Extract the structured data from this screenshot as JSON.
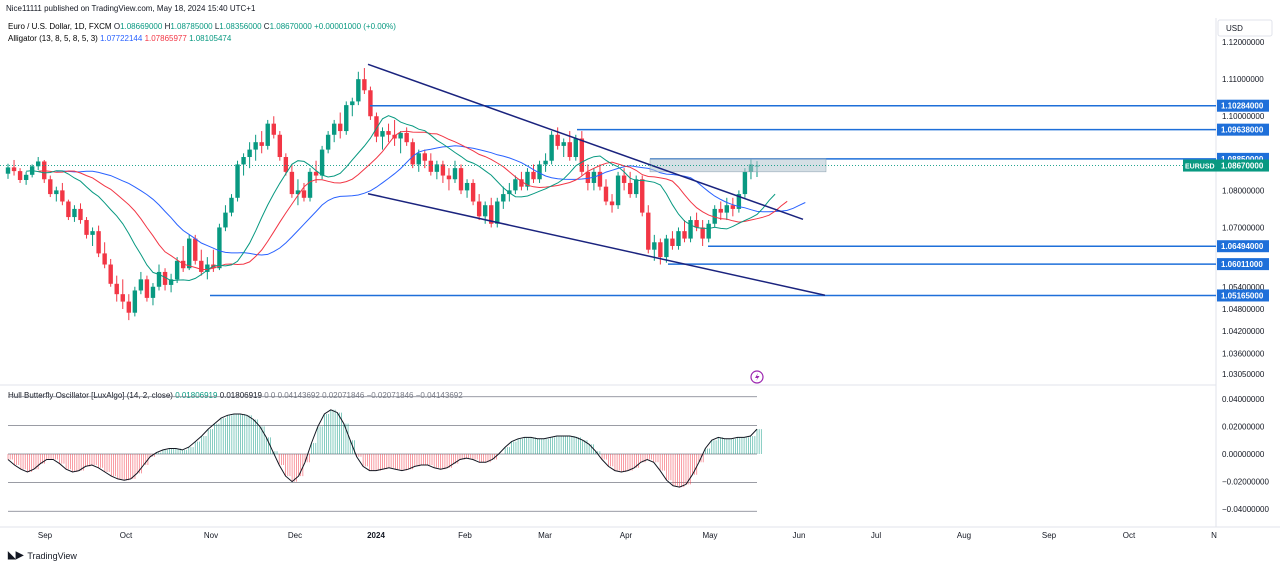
{
  "header": {
    "published": "Nice11111 published on TradingView.com, May 18, 2024 15:40 UTC+1"
  },
  "legend": {
    "symbol": "Euro / U.S. Dollar, 1D, FXCM",
    "ohlc_o_label": "O",
    "ohlc_o": "1.08669000",
    "ohlc_h_label": "H",
    "ohlc_h": "1.08785000",
    "ohlc_l_label": "L",
    "ohlc_l": "1.08356000",
    "ohlc_c_label": "C",
    "ohlc_c": "1.08670000",
    "change": "+0.00001000 (+0.00%)",
    "alligator_label": "Alligator (13, 8, 5, 8, 5, 3)",
    "alligator_jaw": "1.07722144",
    "alligator_teeth": "1.07865977",
    "alligator_lips": "1.08105474"
  },
  "hull": {
    "label": "Hull Butterfly Oscillator [LuxAlgo] (14, 2, close)",
    "v1": "0.01806919",
    "v2": "0.01806919",
    "v3": "0",
    "v4": "0",
    "v5": "0.04143692",
    "v6": "0.02071846",
    "v7": "−0.02071846",
    "v8": "−0.04143692"
  },
  "price_axis": {
    "currency": "USD",
    "ticks": [
      "1.12000000",
      "1.11000000",
      "1.10000000",
      "1.08000000",
      "1.07000000",
      "1.05400000",
      "1.04800000",
      "1.04200000",
      "1.03600000",
      "1.03050000"
    ],
    "levels": [
      "1.10284000",
      "1.09638000",
      "1.08850000",
      "1.06494000",
      "1.06011000",
      "1.05165000"
    ],
    "current_symbol": "EURUSD",
    "current_price": "1.08670000"
  },
  "osc_axis": {
    "ticks": [
      "0.04000000",
      "0.02000000",
      "0.00000000",
      "−0.02000000",
      "−0.04000000"
    ]
  },
  "time_axis": {
    "labels": [
      "Sep",
      "Oct",
      "Nov",
      "Dec",
      "2024",
      "Feb",
      "Mar",
      "Apr",
      "May",
      "Jun",
      "Jul",
      "Aug",
      "Sep",
      "Oct",
      "N"
    ]
  },
  "footer": {
    "brand": "TradingView"
  },
  "colors": {
    "up": "#089981",
    "down": "#f23645",
    "jaw": "#2962ff",
    "teeth": "#f23645",
    "lips": "#089981",
    "level": "#1e6fd9",
    "trend": "#1a237e"
  },
  "chart_data": {
    "type": "candlestick",
    "title": "Euro / U.S. Dollar, 1D, FXCM",
    "levels": [
      1.10284,
      1.09638,
      1.0885,
      1.06494,
      1.06011,
      1.05165
    ],
    "ylim": [
      1.0275,
      1.1265
    ],
    "candles_ohlc": [
      [
        1.0845,
        1.0872,
        1.0831,
        1.0862
      ],
      [
        1.0862,
        1.0882,
        1.084,
        1.0852
      ],
      [
        1.0852,
        1.086,
        1.082,
        1.0828
      ],
      [
        1.0828,
        1.085,
        1.0815,
        1.0842
      ],
      [
        1.0842,
        1.087,
        1.0835,
        1.0865
      ],
      [
        1.0865,
        1.089,
        1.0855,
        1.0878
      ],
      [
        1.0878,
        1.0882,
        1.082,
        1.083
      ],
      [
        1.083,
        1.084,
        1.0782,
        1.079
      ],
      [
        1.079,
        1.081,
        1.077,
        1.08
      ],
      [
        1.08,
        1.082,
        1.076,
        1.077
      ],
      [
        1.077,
        1.0775,
        1.072,
        1.0728
      ],
      [
        1.0728,
        1.076,
        1.0715,
        1.075
      ],
      [
        1.075,
        1.0765,
        1.071,
        1.072
      ],
      [
        1.072,
        1.0728,
        1.067,
        1.068
      ],
      [
        1.068,
        1.07,
        1.065,
        1.069
      ],
      [
        1.069,
        1.0705,
        1.062,
        1.063
      ],
      [
        1.063,
        1.066,
        1.059,
        1.06
      ],
      [
        1.06,
        1.0615,
        1.054,
        1.0548
      ],
      [
        1.0548,
        1.057,
        1.05,
        1.052
      ],
      [
        1.052,
        1.056,
        1.048,
        1.05
      ],
      [
        1.05,
        1.052,
        1.045,
        1.047
      ],
      [
        1.047,
        1.054,
        1.046,
        1.053
      ],
      [
        1.053,
        1.058,
        1.052,
        1.056
      ],
      [
        1.056,
        1.057,
        1.05,
        1.051
      ],
      [
        1.051,
        1.055,
        1.049,
        1.054
      ],
      [
        1.054,
        1.06,
        1.053,
        1.058
      ],
      [
        1.058,
        1.059,
        1.053,
        1.0545
      ],
      [
        1.0545,
        1.0575,
        1.0525,
        1.056
      ],
      [
        1.056,
        1.062,
        1.055,
        1.061
      ],
      [
        1.061,
        1.065,
        1.058,
        1.059
      ],
      [
        1.059,
        1.068,
        1.0585,
        1.067
      ],
      [
        1.067,
        1.068,
        1.06,
        1.061
      ],
      [
        1.061,
        1.064,
        1.057,
        1.058
      ],
      [
        1.058,
        1.062,
        1.056,
        1.06
      ],
      [
        1.06,
        1.064,
        1.058,
        1.059
      ],
      [
        1.059,
        1.071,
        1.0585,
        1.07
      ],
      [
        1.07,
        1.076,
        1.069,
        1.074
      ],
      [
        1.074,
        1.079,
        1.073,
        1.078
      ],
      [
        1.078,
        1.088,
        1.077,
        1.087
      ],
      [
        1.087,
        1.09,
        1.084,
        1.089
      ],
      [
        1.089,
        1.093,
        1.086,
        1.091
      ],
      [
        1.091,
        1.095,
        1.088,
        1.093
      ],
      [
        1.093,
        1.096,
        1.09,
        1.092
      ],
      [
        1.092,
        1.099,
        1.091,
        1.098
      ],
      [
        1.098,
        1.1,
        1.094,
        1.095
      ],
      [
        1.095,
        1.096,
        1.088,
        1.089
      ],
      [
        1.089,
        1.09,
        1.084,
        1.085
      ],
      [
        1.085,
        1.087,
        1.078,
        1.079
      ],
      [
        1.079,
        1.083,
        1.076,
        1.08
      ],
      [
        1.08,
        1.082,
        1.077,
        1.078
      ],
      [
        1.078,
        1.086,
        1.077,
        1.085
      ],
      [
        1.085,
        1.088,
        1.082,
        1.084
      ],
      [
        1.084,
        1.092,
        1.083,
        1.091
      ],
      [
        1.091,
        1.096,
        1.09,
        1.095
      ],
      [
        1.095,
        1.099,
        1.093,
        1.098
      ],
      [
        1.098,
        1.101,
        1.094,
        1.096
      ],
      [
        1.096,
        1.104,
        1.095,
        1.103
      ],
      [
        1.103,
        1.105,
        1.1,
        1.104
      ],
      [
        1.104,
        1.112,
        1.103,
        1.11
      ],
      [
        1.11,
        1.113,
        1.106,
        1.107
      ],
      [
        1.107,
        1.108,
        1.099,
        1.1
      ],
      [
        1.1,
        1.101,
        1.093,
        1.0945
      ],
      [
        1.0945,
        1.097,
        1.091,
        1.096
      ],
      [
        1.096,
        1.098,
        1.093,
        1.095
      ],
      [
        1.095,
        1.099,
        1.092,
        1.094
      ],
      [
        1.094,
        1.096,
        1.09,
        1.0955
      ],
      [
        1.0955,
        1.097,
        1.092,
        1.093
      ],
      [
        1.093,
        1.094,
        1.086,
        1.087
      ],
      [
        1.087,
        1.091,
        1.085,
        1.09
      ],
      [
        1.09,
        1.091,
        1.086,
        1.088
      ],
      [
        1.088,
        1.09,
        1.084,
        1.085
      ],
      [
        1.085,
        1.088,
        1.083,
        1.087
      ],
      [
        1.087,
        1.088,
        1.082,
        1.084
      ],
      [
        1.084,
        1.086,
        1.08,
        1.083
      ],
      [
        1.083,
        1.088,
        1.082,
        1.086
      ],
      [
        1.086,
        1.087,
        1.079,
        1.08
      ],
      [
        1.08,
        1.083,
        1.078,
        1.082
      ],
      [
        1.082,
        1.083,
        1.076,
        1.077
      ],
      [
        1.077,
        1.079,
        1.072,
        1.073
      ],
      [
        1.073,
        1.077,
        1.071,
        1.076
      ],
      [
        1.076,
        1.078,
        1.07,
        1.071
      ],
      [
        1.071,
        1.078,
        1.07,
        1.077
      ],
      [
        1.077,
        1.081,
        1.075,
        1.079
      ],
      [
        1.079,
        1.082,
        1.077,
        1.08
      ],
      [
        1.08,
        1.084,
        1.079,
        1.083
      ],
      [
        1.083,
        1.085,
        1.08,
        1.081
      ],
      [
        1.081,
        1.086,
        1.08,
        1.085
      ],
      [
        1.085,
        1.087,
        1.082,
        1.083
      ],
      [
        1.083,
        1.088,
        1.082,
        1.087
      ],
      [
        1.087,
        1.09,
        1.085,
        1.088
      ],
      [
        1.088,
        1.096,
        1.087,
        1.095
      ],
      [
        1.095,
        1.097,
        1.091,
        1.092
      ],
      [
        1.092,
        1.094,
        1.089,
        1.093
      ],
      [
        1.093,
        1.096,
        1.088,
        1.089
      ],
      [
        1.089,
        1.095,
        1.088,
        1.094
      ],
      [
        1.094,
        1.096,
        1.084,
        1.085
      ],
      [
        1.085,
        1.087,
        1.08,
        1.082
      ],
      [
        1.082,
        1.086,
        1.08,
        1.085
      ],
      [
        1.085,
        1.087,
        1.08,
        1.081
      ],
      [
        1.081,
        1.083,
        1.076,
        1.077
      ],
      [
        1.077,
        1.079,
        1.074,
        1.076
      ],
      [
        1.076,
        1.085,
        1.075,
        1.084
      ],
      [
        1.084,
        1.086,
        1.08,
        1.082
      ],
      [
        1.082,
        1.085,
        1.078,
        1.079
      ],
      [
        1.079,
        1.084,
        1.078,
        1.083
      ],
      [
        1.083,
        1.084,
        1.073,
        1.074
      ],
      [
        1.074,
        1.076,
        1.063,
        1.064
      ],
      [
        1.064,
        1.068,
        1.061,
        1.066
      ],
      [
        1.066,
        1.067,
        1.06,
        1.062
      ],
      [
        1.062,
        1.068,
        1.0605,
        1.067
      ],
      [
        1.067,
        1.069,
        1.064,
        1.065
      ],
      [
        1.065,
        1.07,
        1.064,
        1.069
      ],
      [
        1.069,
        1.072,
        1.066,
        1.067
      ],
      [
        1.067,
        1.073,
        1.066,
        1.072
      ],
      [
        1.072,
        1.074,
        1.069,
        1.07
      ],
      [
        1.07,
        1.072,
        1.065,
        1.067
      ],
      [
        1.067,
        1.072,
        1.066,
        1.071
      ],
      [
        1.071,
        1.076,
        1.07,
        1.075
      ],
      [
        1.075,
        1.077,
        1.072,
        1.074
      ],
      [
        1.074,
        1.078,
        1.072,
        1.076
      ],
      [
        1.076,
        1.078,
        1.073,
        1.075
      ],
      [
        1.075,
        1.08,
        1.074,
        1.079
      ],
      [
        1.079,
        1.086,
        1.078,
        1.085
      ],
      [
        1.085,
        1.0885,
        1.083,
        1.087
      ],
      [
        1.0867,
        1.0879,
        1.0836,
        1.0867
      ]
    ],
    "hull_values": [
      -0.004,
      -0.008,
      -0.011,
      -0.013,
      -0.011,
      -0.007,
      -0.004,
      -0.004,
      -0.007,
      -0.011,
      -0.013,
      -0.012,
      -0.009,
      -0.008,
      -0.01,
      -0.013,
      -0.016,
      -0.018,
      -0.019,
      -0.018,
      -0.014,
      -0.008,
      -0.002,
      0.001,
      0.003,
      0.004,
      0.004,
      0.003,
      0.005,
      0.009,
      0.013,
      0.018,
      0.022,
      0.026,
      0.028,
      0.029,
      0.029,
      0.028,
      0.025,
      0.02,
      0.012,
      0.002,
      -0.008,
      -0.016,
      -0.02,
      -0.016,
      -0.006,
      0.008,
      0.02,
      0.029,
      0.032,
      0.03,
      0.022,
      0.01,
      -0.002,
      -0.009,
      -0.012,
      -0.012,
      -0.011,
      -0.01,
      -0.011,
      -0.012,
      -0.011,
      -0.009,
      -0.008,
      -0.008,
      -0.01,
      -0.011,
      -0.01,
      -0.007,
      -0.004,
      -0.003,
      -0.004,
      -0.006,
      -0.006,
      -0.004,
      0.0,
      0.005,
      0.009,
      0.011,
      0.012,
      0.012,
      0.011,
      0.011,
      0.012,
      0.013,
      0.013,
      0.013,
      0.012,
      0.01,
      0.007,
      0.002,
      -0.004,
      -0.009,
      -0.012,
      -0.013,
      -0.012,
      -0.01,
      -0.006,
      -0.004,
      -0.006,
      -0.012,
      -0.019,
      -0.023,
      -0.024,
      -0.022,
      -0.015,
      -0.006,
      0.004,
      0.01,
      0.012,
      0.011,
      0.011,
      0.012,
      0.012,
      0.013,
      0.018
    ]
  }
}
